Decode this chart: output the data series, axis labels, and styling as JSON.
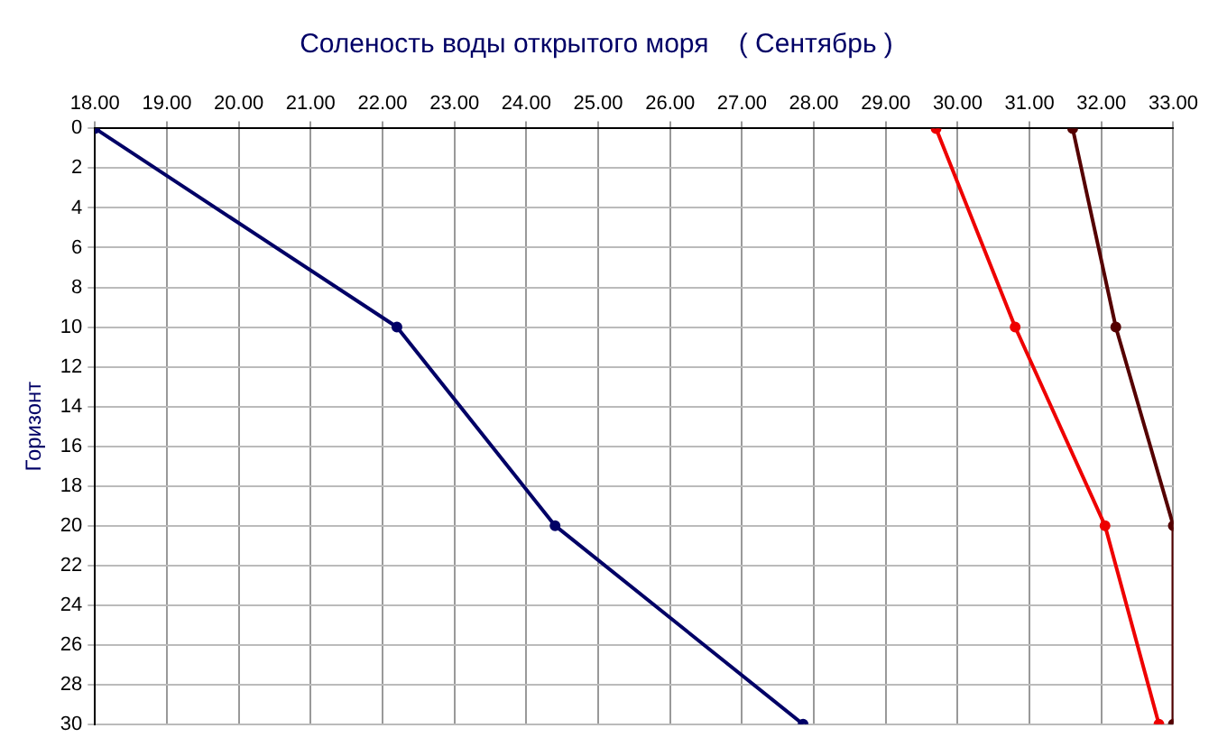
{
  "chart_data": {
    "type": "line",
    "title": "Соленость воды открытого моря    ( Сентябрь )",
    "ylabel": "Горизонт",
    "xlim": [
      18,
      33
    ],
    "xticks": [
      {
        "value": 18,
        "label": "18.00"
      },
      {
        "value": 19,
        "label": "19.00"
      },
      {
        "value": 20,
        "label": "20.00"
      },
      {
        "value": 21,
        "label": "21.00"
      },
      {
        "value": 22,
        "label": "22.00"
      },
      {
        "value": 23,
        "label": "23.00"
      },
      {
        "value": 24,
        "label": "24.00"
      },
      {
        "value": 25,
        "label": "25.00"
      },
      {
        "value": 26,
        "label": "26.00"
      },
      {
        "value": 27,
        "label": "27.00"
      },
      {
        "value": 28,
        "label": "28.00"
      },
      {
        "value": 29,
        "label": "29.00"
      },
      {
        "value": 30,
        "label": "30.00"
      },
      {
        "value": 31,
        "label": "31.00"
      },
      {
        "value": 32,
        "label": "32.00"
      },
      {
        "value": 33,
        "label": "33.00"
      }
    ],
    "ylim": [
      30,
      0
    ],
    "yticks": [
      0,
      2,
      4,
      6,
      8,
      10,
      12,
      14,
      16,
      18,
      20,
      22,
      24,
      26,
      28,
      30
    ],
    "grid": true,
    "legend": false,
    "marker": "circle",
    "line_style": "solid",
    "series": [
      {
        "color": "#000066",
        "x": [
          18.0,
          22.2,
          24.4,
          27.85
        ],
        "values": [
          0,
          10,
          20,
          30
        ]
      },
      {
        "color": "#ee0000",
        "x": [
          29.7,
          30.8,
          32.05,
          32.8
        ],
        "values": [
          0,
          10,
          20,
          30
        ]
      },
      {
        "color": "#550000",
        "x": [
          31.6,
          32.2,
          33.0,
          33.0
        ],
        "values": [
          0,
          10,
          20,
          30
        ]
      }
    ]
  }
}
